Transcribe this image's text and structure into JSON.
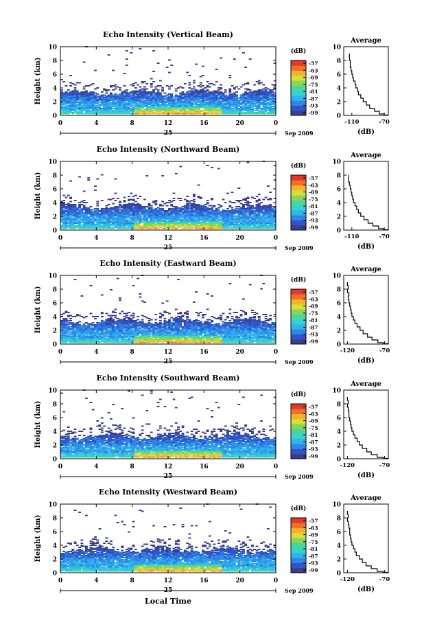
{
  "colors": {
    "scale": [
      "#3b3f8f",
      "#2f55c8",
      "#2f86e6",
      "#2fb4ee",
      "#35d2d2",
      "#4bd59a",
      "#8ad654",
      "#d8dd3a",
      "#f3b22c",
      "#f0702a",
      "#e23a2a"
    ]
  },
  "colorbar": {
    "unit": "(dB)",
    "ticks": [
      "-57",
      "-63",
      "-69",
      "-75",
      "-81",
      "-87",
      "-93",
      "-99"
    ]
  },
  "x_axis": {
    "ticks": [
      "0",
      "4",
      "8",
      "12",
      "16",
      "20",
      "0"
    ],
    "day": "25",
    "month_label": "Sep 2009",
    "xlabel": "Local Time"
  },
  "chart_data": [
    {
      "type": "heatmap",
      "title": "Echo Intensity (Vertical Beam)",
      "ylabel": "Height (km)",
      "yticks": [
        "0",
        "2",
        "4",
        "6",
        "8",
        "10"
      ],
      "ylim": [
        0,
        10
      ],
      "xlim": [
        0,
        24
      ],
      "zlim": [
        -99,
        -57
      ],
      "average": {
        "title": "Average",
        "xlabel": "(dB)",
        "xticks": [
          "-110",
          "-70"
        ],
        "xlim": [
          -120,
          -65
        ],
        "heights": [
          0.2,
          0.6,
          1.0,
          1.5,
          2.0,
          2.5,
          3.0,
          3.5,
          4.0,
          4.5,
          5.0,
          5.5,
          6.0,
          6.5,
          7.0,
          7.5,
          8.0,
          8.5,
          9.0
        ],
        "values": [
          -70,
          -76,
          -82,
          -88,
          -92,
          -96,
          -99,
          -102,
          -103,
          -105,
          -106,
          -108,
          -109,
          -110,
          -111,
          -112,
          -112,
          -113,
          -113
        ]
      }
    },
    {
      "type": "heatmap",
      "title": "Echo Intensity (Northward Beam)",
      "ylabel": "Height (km)",
      "yticks": [
        "0",
        "2",
        "4",
        "6",
        "8",
        "10"
      ],
      "ylim": [
        0,
        10
      ],
      "xlim": [
        0,
        24
      ],
      "zlim": [
        -99,
        -57
      ],
      "average": {
        "title": "Average",
        "xlabel": "(dB)",
        "xticks": [
          "-110",
          "-70"
        ],
        "xlim": [
          -120,
          -65
        ],
        "heights": [
          0.2,
          0.6,
          1.0,
          1.5,
          2.0,
          2.5,
          3.0,
          3.5,
          4.0,
          4.5,
          5.0,
          5.5,
          6.0,
          6.5,
          7.0,
          7.5,
          8.0
        ],
        "values": [
          -71,
          -77,
          -84,
          -90,
          -95,
          -99,
          -102,
          -104,
          -106,
          -108,
          -109,
          -110,
          -111,
          -112,
          -113,
          -114,
          -114
        ]
      }
    },
    {
      "type": "heatmap",
      "title": "Echo Intensity (Eastward Beam)",
      "ylabel": "Height (km)",
      "yticks": [
        "0",
        "2",
        "4",
        "6",
        "8",
        "10"
      ],
      "ylim": [
        0,
        10
      ],
      "xlim": [
        0,
        24
      ],
      "zlim": [
        -99,
        -57
      ],
      "average": {
        "title": "Average",
        "xlabel": "(dB)",
        "xticks": [
          "-120",
          "-70"
        ],
        "xlim": [
          -125,
          -65
        ],
        "heights": [
          0.2,
          0.6,
          1.0,
          1.5,
          2.0,
          2.5,
          3.0,
          3.5,
          4.0,
          4.5,
          5.0,
          5.5,
          6.0,
          6.5,
          7.0,
          7.5,
          8.0,
          8.5,
          9.0
        ],
        "values": [
          -72,
          -79,
          -87,
          -93,
          -99,
          -103,
          -107,
          -110,
          -112,
          -114,
          -115,
          -116,
          -117,
          -118,
          -119,
          -118,
          -120,
          -119,
          -120
        ]
      }
    },
    {
      "type": "heatmap",
      "title": "Echo Intensity (Southward Beam)",
      "ylabel": "Height (km)",
      "yticks": [
        "0",
        "2",
        "4",
        "6",
        "8",
        "10"
      ],
      "ylim": [
        0,
        10
      ],
      "xlim": [
        0,
        24
      ],
      "zlim": [
        -99,
        -57
      ],
      "average": {
        "title": "Average",
        "xlabel": "(dB)",
        "xticks": [
          "-120",
          "-70"
        ],
        "xlim": [
          -125,
          -65
        ],
        "heights": [
          0.2,
          0.6,
          1.0,
          1.5,
          2.0,
          2.5,
          3.0,
          3.5,
          4.0,
          4.5,
          5.0,
          5.5,
          6.0,
          6.5,
          7.0,
          7.5,
          8.0,
          8.5,
          9.0
        ],
        "values": [
          -72,
          -80,
          -88,
          -94,
          -100,
          -104,
          -107,
          -110,
          -112,
          -114,
          -115,
          -116,
          -117,
          -118,
          -118,
          -119,
          -120,
          -119,
          -120
        ]
      }
    },
    {
      "type": "heatmap",
      "title": "Echo Intensity (Westward Beam)",
      "ylabel": "Height (km)",
      "yticks": [
        "0",
        "2",
        "4",
        "6",
        "8",
        "10"
      ],
      "ylim": [
        0,
        10
      ],
      "xlim": [
        0,
        24
      ],
      "zlim": [
        -99,
        -57
      ],
      "average": {
        "title": "Average",
        "xlabel": "(dB)",
        "xticks": [
          "-120",
          "-70"
        ],
        "xlim": [
          -125,
          -65
        ],
        "heights": [
          0.2,
          0.6,
          1.0,
          1.5,
          2.0,
          2.5,
          3.0,
          3.5,
          4.0,
          4.5,
          5.0,
          5.5,
          6.0,
          6.5,
          7.0,
          7.5,
          8.0,
          8.5,
          9.0
        ],
        "values": [
          -72,
          -80,
          -88,
          -95,
          -100,
          -104,
          -108,
          -110,
          -112,
          -114,
          -115,
          -116,
          -117,
          -117,
          -118,
          -119,
          -120,
          -119,
          -120
        ]
      }
    }
  ]
}
